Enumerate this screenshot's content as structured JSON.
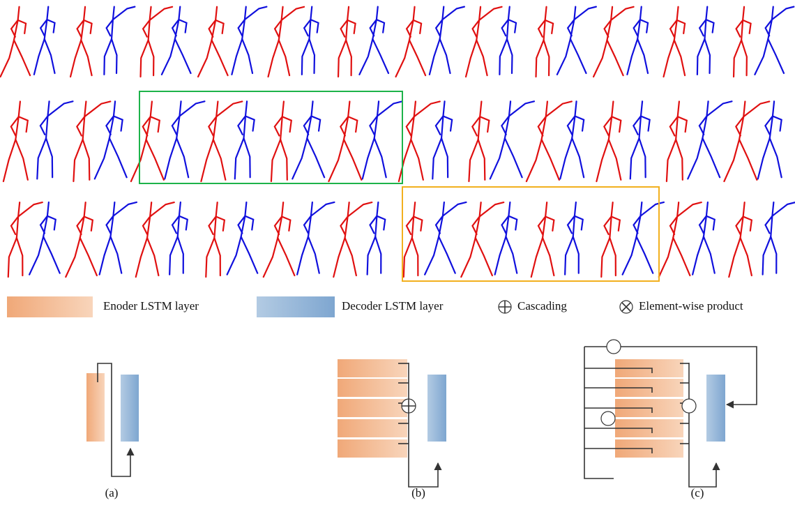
{
  "legend": {
    "items": [
      {
        "label": "Enoder LSTM layer"
      },
      {
        "label": "Decoder LSTM layer"
      },
      {
        "label": "Cascading"
      },
      {
        "label": "Element-wise product"
      }
    ]
  },
  "captions": [
    "(a)",
    "(b)",
    "(c)"
  ]
}
